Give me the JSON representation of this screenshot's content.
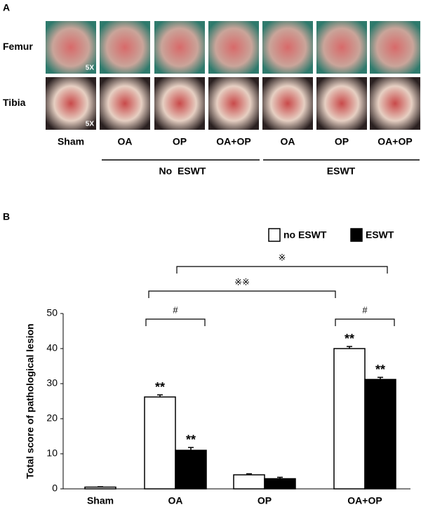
{
  "panel_a": {
    "label": "A",
    "rows": [
      "Femur",
      "Tibia"
    ],
    "magnification": [
      "5X",
      "5X"
    ],
    "columns": [
      "Sham",
      "OA",
      "OP",
      "OA+OP",
      "OA",
      "OP",
      "OA+OP"
    ],
    "groups": [
      "No  ESWT",
      "ESWT"
    ]
  },
  "chart_data": {
    "type": "bar",
    "panel_label": "B",
    "y_label": "Total score of pathological lesion",
    "categories": [
      "Sham",
      "OA",
      "OP",
      "OA+OP"
    ],
    "series": [
      {
        "name": "no ESWT",
        "color": "#ffffff",
        "values": [
          0.5,
          26.2,
          4,
          40
        ],
        "errors": [
          0.1,
          0.6,
          0.3,
          0.6
        ],
        "stars": [
          null,
          "**",
          null,
          "**"
        ]
      },
      {
        "name": "ESWT",
        "color": "#000000",
        "values": [
          null,
          11,
          2.9,
          31.2
        ],
        "errors": [
          null,
          0.8,
          0.4,
          0.6
        ],
        "stars": [
          null,
          "**",
          null,
          "**"
        ]
      }
    ],
    "brackets": [
      "#",
      "#",
      "※※",
      "※"
    ],
    "ylim": [
      0,
      50
    ],
    "yticks": [
      0,
      10,
      20,
      30,
      40,
      50
    ],
    "grid": false,
    "legend": "top-right"
  }
}
